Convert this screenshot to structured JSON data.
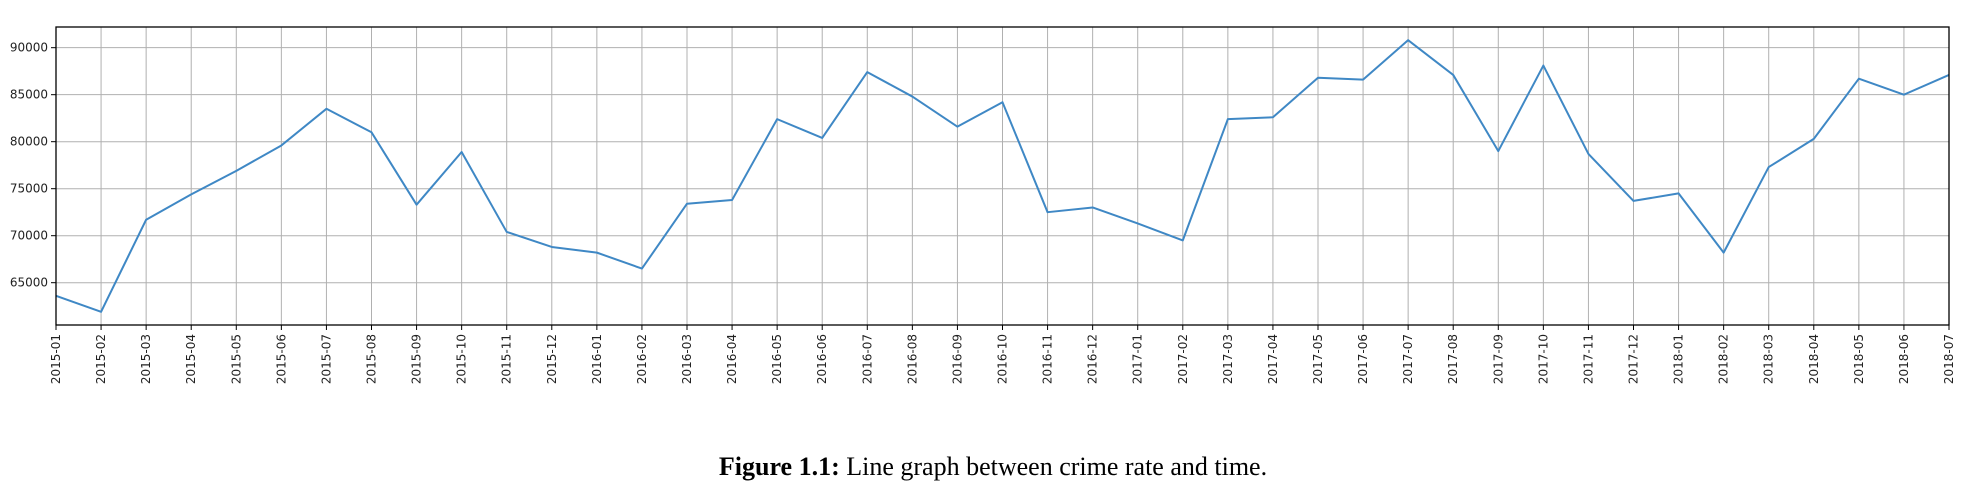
{
  "colors": {
    "line": "#3f88c5",
    "grid": "#b0b0b0",
    "axes": "#000000"
  },
  "caption": {
    "label": "Figure 1.1:",
    "text": " Line graph between crime rate and time."
  },
  "chart_data": {
    "type": "line",
    "title": "",
    "xlabel": "",
    "ylabel": "",
    "grid": true,
    "legend": "none",
    "ylim": [
      60500,
      92200
    ],
    "yticks": [
      65000,
      70000,
      75000,
      80000,
      85000,
      90000
    ],
    "categories": [
      "2015-01",
      "2015-02",
      "2015-03",
      "2015-04",
      "2015-05",
      "2015-06",
      "2015-07",
      "2015-08",
      "2015-09",
      "2015-10",
      "2015-11",
      "2015-12",
      "2016-01",
      "2016-02",
      "2016-03",
      "2016-04",
      "2016-05",
      "2016-06",
      "2016-07",
      "2016-08",
      "2016-09",
      "2016-10",
      "2016-11",
      "2016-12",
      "2017-01",
      "2017-02",
      "2017-03",
      "2017-04",
      "2017-05",
      "2017-06",
      "2017-07",
      "2017-08",
      "2017-09",
      "2017-10",
      "2017-11",
      "2017-12",
      "2018-01",
      "2018-02",
      "2018-03",
      "2018-04",
      "2018-05",
      "2018-06",
      "2018-07"
    ],
    "series": [
      {
        "values": [
          63600,
          61900,
          71700,
          74400,
          76900,
          79600,
          83500,
          81000,
          73300,
          78900,
          70400,
          68800,
          68200,
          66500,
          73400,
          73800,
          82400,
          80400,
          87400,
          84800,
          81600,
          84200,
          72500,
          73000,
          71300,
          69500,
          82400,
          82600,
          86800,
          86600,
          90800,
          87100,
          79000,
          88100,
          78700,
          73700,
          74500,
          68200,
          77300,
          80300,
          86700,
          85000,
          87100
        ]
      }
    ]
  }
}
